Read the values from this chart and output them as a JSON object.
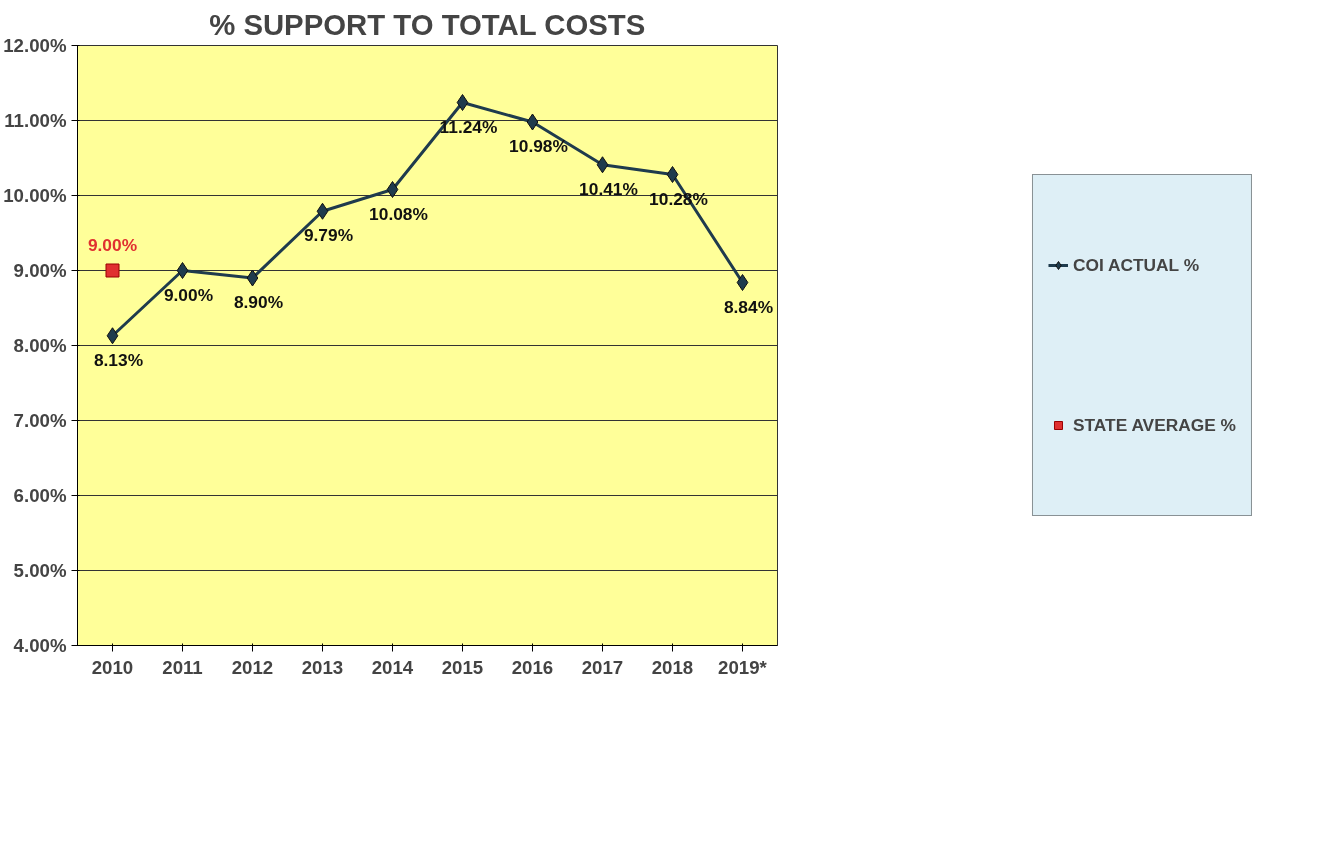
{
  "chart_data": {
    "type": "line",
    "title": "% SUPPORT TO TOTAL COSTS",
    "categories": [
      "2010",
      "2011",
      "2012",
      "2013",
      "2014",
      "2015",
      "2016",
      "2017",
      "2018",
      "2019*"
    ],
    "series": [
      {
        "name": "COI ACTUAL %",
        "color": "#1f3b4d",
        "marker": "diamond",
        "values": [
          8.13,
          9.0,
          8.9,
          9.79,
          10.08,
          11.24,
          10.98,
          10.41,
          10.28,
          8.84
        ],
        "value_labels": [
          "8.13%",
          "9.00%",
          "8.90%",
          "9.79%",
          "10.08%",
          "11.24%",
          "10.98%",
          "10.41%",
          "10.28%",
          "8.84%"
        ]
      },
      {
        "name": "STATE AVERAGE %",
        "color": "#e03030",
        "marker": "square",
        "values": [
          9.0,
          null,
          null,
          null,
          null,
          null,
          null,
          null,
          null,
          null
        ],
        "value_labels": [
          "9.00%",
          null,
          null,
          null,
          null,
          null,
          null,
          null,
          null,
          null
        ]
      }
    ],
    "ylim": [
      4,
      12
    ],
    "yticks": [
      {
        "value": 4,
        "label": "4.00%"
      },
      {
        "value": 5,
        "label": "5.00%"
      },
      {
        "value": 6,
        "label": "6.00%"
      },
      {
        "value": 7,
        "label": "7.00%"
      },
      {
        "value": 8,
        "label": "8.00%"
      },
      {
        "value": 9,
        "label": "9.00%"
      },
      {
        "value": 10,
        "label": "10.00%"
      },
      {
        "value": 11,
        "label": "11.00%"
      },
      {
        "value": 12,
        "label": "12.00%"
      }
    ],
    "grid": "y",
    "legend": "right",
    "data_labels": true,
    "line_style": "solid"
  }
}
